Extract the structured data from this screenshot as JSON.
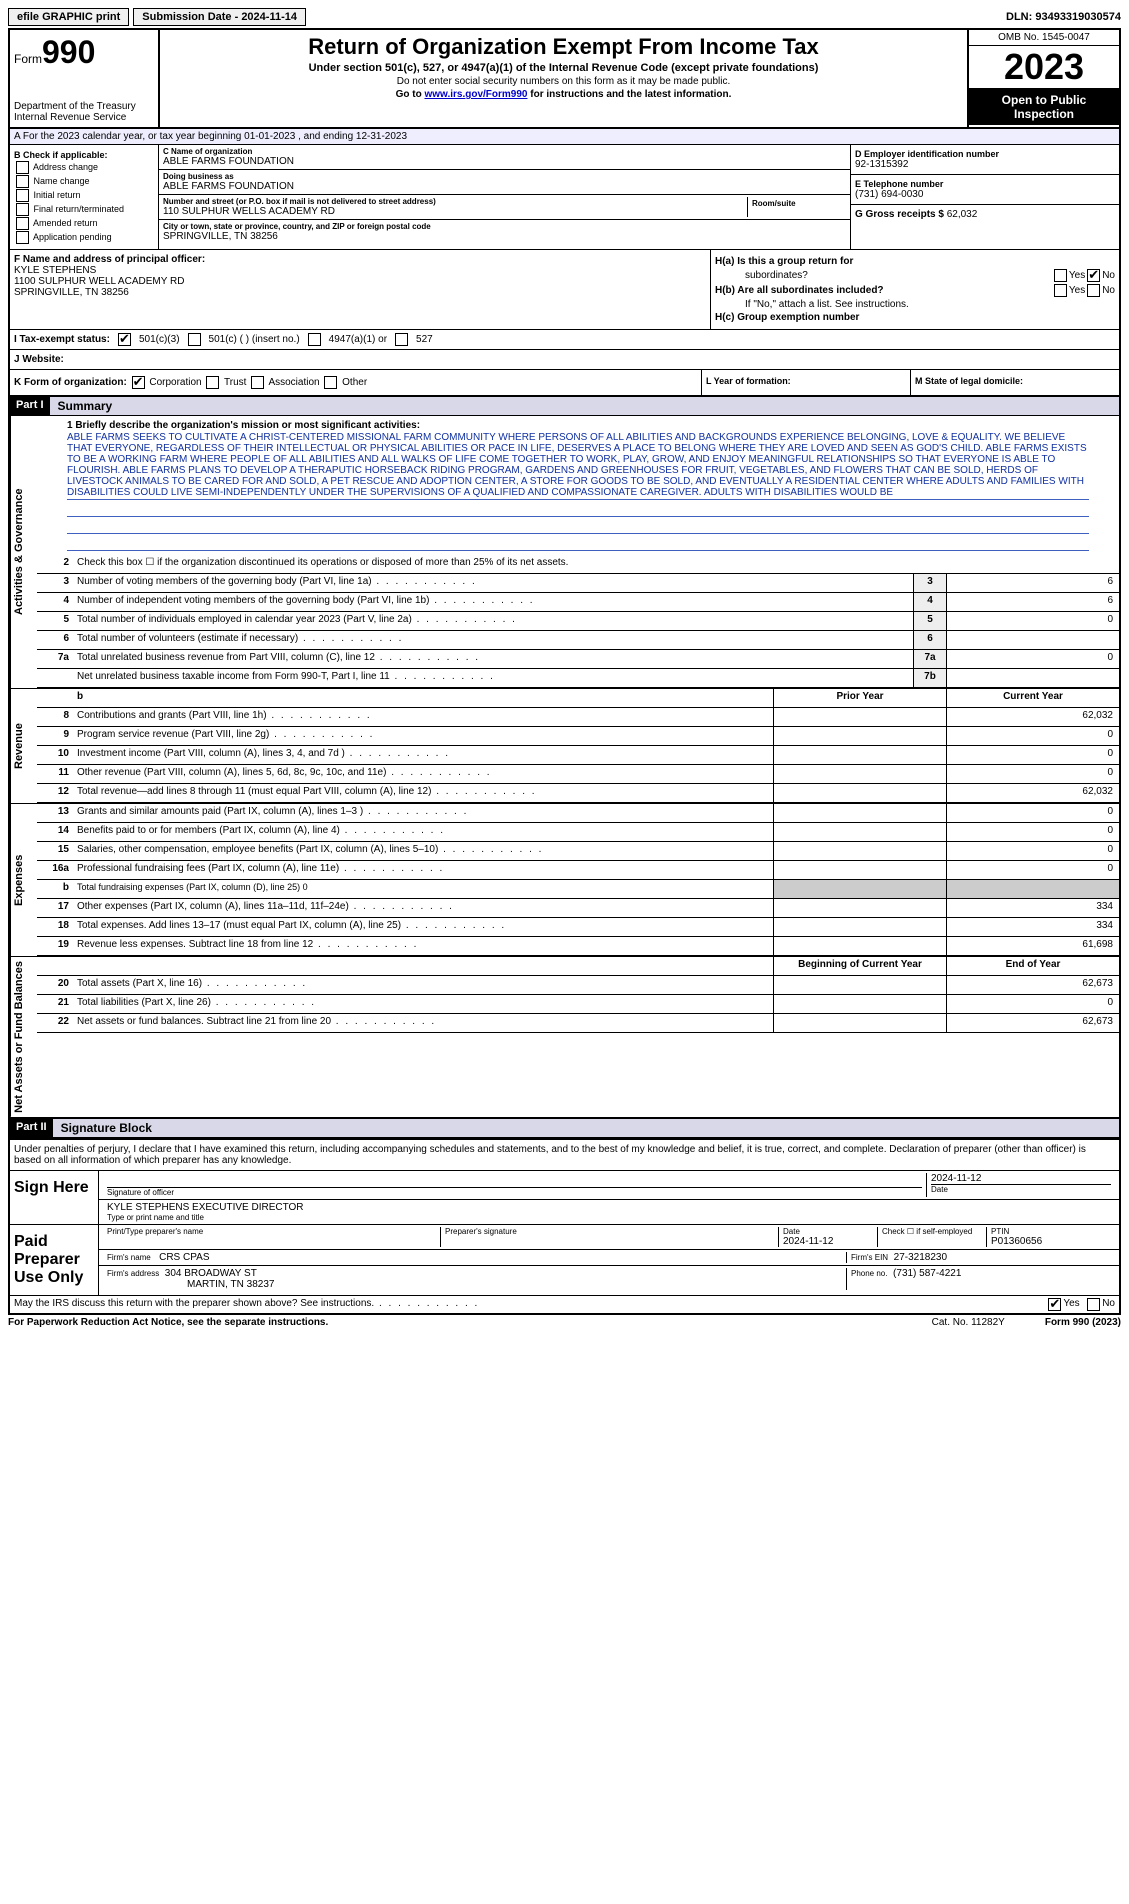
{
  "topbar": {
    "efile": "efile GRAPHIC print",
    "sub_label": "Submission Date - 2024-11-14",
    "dln": "DLN: 93493319030574"
  },
  "header": {
    "form_word": "Form",
    "form_num": "990",
    "dept": "Department of the Treasury",
    "irs": "Internal Revenue Service",
    "title": "Return of Organization Exempt From Income Tax",
    "sub1": "Under section 501(c), 527, or 4947(a)(1) of the Internal Revenue Code (except private foundations)",
    "sub2": "Do not enter social security numbers on this form as it may be made public.",
    "sub3_pre": "Go to ",
    "sub3_link": "www.irs.gov/Form990",
    "sub3_post": " for instructions and the latest information.",
    "omb": "OMB No. 1545-0047",
    "year": "2023",
    "inspect1": "Open to Public",
    "inspect2": "Inspection"
  },
  "row_a": "A For the 2023 calendar year, or tax year beginning 01-01-2023   , and ending 12-31-2023",
  "col_b": {
    "hdr": "B Check if applicable:",
    "items": [
      "Address change",
      "Name change",
      "Initial return",
      "Final return/terminated",
      "Amended return",
      "Application pending"
    ]
  },
  "col_c": {
    "name_lbl": "C Name of organization",
    "name": "ABLE FARMS FOUNDATION",
    "dba_lbl": "Doing business as",
    "dba": "ABLE FARMS FOUNDATION",
    "street_lbl": "Number and street (or P.O. box if mail is not delivered to street address)",
    "street": "110 SULPHUR WELLS ACADEMY RD",
    "room_lbl": "Room/suite",
    "city_lbl": "City or town, state or province, country, and ZIP or foreign postal code",
    "city": "SPRINGVILLE, TN  38256"
  },
  "col_d": {
    "ein_lbl": "D Employer identification number",
    "ein": "92-1315392",
    "tel_lbl": "E Telephone number",
    "tel": "(731) 694-0030",
    "gross_lbl": "G Gross receipts $",
    "gross": "62,032"
  },
  "col_f": {
    "lbl": "F  Name and address of principal officer:",
    "name": "KYLE STEPHENS",
    "addr1": "1100 SULPHUR WELL ACADEMY RD",
    "addr2": "SPRINGVILLE, TN  38256"
  },
  "col_h": {
    "ha": "H(a)  Is this a group return for",
    "ha2": "subordinates?",
    "hb": "H(b)  Are all subordinates included?",
    "hb_note": "If \"No,\" attach a list. See instructions.",
    "hc": "H(c)  Group exemption number",
    "yes": "Yes",
    "no": "No"
  },
  "row_i": {
    "lbl": "I   Tax-exempt status:",
    "o1": "501(c)(3)",
    "o2": "501(c) (  ) (insert no.)",
    "o3": "4947(a)(1) or",
    "o4": "527"
  },
  "row_j": {
    "lbl": "J   Website:"
  },
  "row_k": {
    "lbl": "K Form of organization:",
    "o1": "Corporation",
    "o2": "Trust",
    "o3": "Association",
    "o4": "Other",
    "l_lbl": "L Year of formation:",
    "m_lbl": "M State of legal domicile:"
  },
  "part1": {
    "num": "Part I",
    "title": "Summary"
  },
  "side_labels": {
    "ag": "Activities & Governance",
    "rev": "Revenue",
    "exp": "Expenses",
    "net": "Net Assets or Fund Balances"
  },
  "mission_lbl": "1   Briefly describe the organization's mission or most significant activities:",
  "mission": "ABLE FARMS SEEKS TO CULTIVATE A CHRIST-CENTERED MISSIONAL FARM COMMUNITY WHERE PERSONS OF ALL ABILITIES AND BACKGROUNDS EXPERIENCE BELONGING, LOVE & EQUALITY. WE BELIEVE THAT EVERYONE, REGARDLESS OF THEIR INTELLECTUAL OR PHYSICAL ABILITIES OR PACE IN LIFE, DESERVES A PLACE TO BELONG WHERE THEY ARE LOVED AND SEEN AS GOD'S CHILD. ABLE FARMS EXISTS TO BE A WORKING FARM WHERE PEOPLE OF ALL ABILITIES AND ALL WALKS OF LIFE COME TOGETHER TO WORK, PLAY, GROW, AND ENJOY MEANINGFUL RELATIONSHIPS SO THAT EVERYONE IS ABLE TO FLOURISH. ABLE FARMS PLANS TO DEVELOP A THERAPUTIC HORSEBACK RIDING PROGRAM, GARDENS AND GREENHOUSES FOR FRUIT, VEGETABLES, AND FLOWERS THAT CAN BE SOLD, HERDS OF LIVESTOCK ANIMALS TO BE CARED FOR AND SOLD, A PET RESCUE AND ADOPTION CENTER, A STORE FOR GOODS TO BE SOLD, AND EVENTUALLY A RESIDENTIAL CENTER WHERE ADULTS AND FAMILIES WITH DISABILITIES COULD LIVE SEMI-INDEPENDENTLY UNDER THE SUPERVISIONS OF A QUALIFIED AND COMPASSIONATE CAREGIVER. ADULTS WITH DISABILITIES WOULD BE",
  "lines_ag": [
    {
      "n": "2",
      "t": "Check this box  ☐  if the organization discontinued its operations or disposed of more than 25% of its net assets."
    },
    {
      "n": "3",
      "t": "Number of voting members of the governing body (Part VI, line 1a)",
      "box": "3",
      "v": "6"
    },
    {
      "n": "4",
      "t": "Number of independent voting members of the governing body (Part VI, line 1b)",
      "box": "4",
      "v": "6"
    },
    {
      "n": "5",
      "t": "Total number of individuals employed in calendar year 2023 (Part V, line 2a)",
      "box": "5",
      "v": "0"
    },
    {
      "n": "6",
      "t": "Total number of volunteers (estimate if necessary)",
      "box": "6",
      "v": ""
    },
    {
      "n": "7a",
      "t": "Total unrelated business revenue from Part VIII, column (C), line 12",
      "box": "7a",
      "v": "0"
    },
    {
      "n": "",
      "t": "Net unrelated business taxable income from Form 990-T, Part I, line 11",
      "box": "7b",
      "v": ""
    }
  ],
  "col_hdrs": {
    "prior": "Prior Year",
    "current": "Current Year",
    "begin": "Beginning of Current Year",
    "end": "End of Year"
  },
  "lines_rev": [
    {
      "n": "8",
      "t": "Contributions and grants (Part VIII, line 1h)",
      "p": "",
      "c": "62,032"
    },
    {
      "n": "9",
      "t": "Program service revenue (Part VIII, line 2g)",
      "p": "",
      "c": "0"
    },
    {
      "n": "10",
      "t": "Investment income (Part VIII, column (A), lines 3, 4, and 7d )",
      "p": "",
      "c": "0"
    },
    {
      "n": "11",
      "t": "Other revenue (Part VIII, column (A), lines 5, 6d, 8c, 9c, 10c, and 11e)",
      "p": "",
      "c": "0"
    },
    {
      "n": "12",
      "t": "Total revenue—add lines 8 through 11 (must equal Part VIII, column (A), line 12)",
      "p": "",
      "c": "62,032"
    }
  ],
  "lines_exp": [
    {
      "n": "13",
      "t": "Grants and similar amounts paid (Part IX, column (A), lines 1–3 )",
      "p": "",
      "c": "0"
    },
    {
      "n": "14",
      "t": "Benefits paid to or for members (Part IX, column (A), line 4)",
      "p": "",
      "c": "0"
    },
    {
      "n": "15",
      "t": "Salaries, other compensation, employee benefits (Part IX, column (A), lines 5–10)",
      "p": "",
      "c": "0"
    },
    {
      "n": "16a",
      "t": "Professional fundraising fees (Part IX, column (A), line 11e)",
      "p": "",
      "c": "0"
    },
    {
      "n": "b",
      "t": "Total fundraising expenses (Part IX, column (D), line 25) 0",
      "shaded": true
    },
    {
      "n": "17",
      "t": "Other expenses (Part IX, column (A), lines 11a–11d, 11f–24e)",
      "p": "",
      "c": "334"
    },
    {
      "n": "18",
      "t": "Total expenses. Add lines 13–17 (must equal Part IX, column (A), line 25)",
      "p": "",
      "c": "334"
    },
    {
      "n": "19",
      "t": "Revenue less expenses. Subtract line 18 from line 12",
      "p": "",
      "c": "61,698"
    }
  ],
  "lines_net": [
    {
      "n": "20",
      "t": "Total assets (Part X, line 16)",
      "p": "",
      "c": "62,673"
    },
    {
      "n": "21",
      "t": "Total liabilities (Part X, line 26)",
      "p": "",
      "c": "0"
    },
    {
      "n": "22",
      "t": "Net assets or fund balances. Subtract line 21 from line 20",
      "p": "",
      "c": "62,673"
    }
  ],
  "part2": {
    "num": "Part II",
    "title": "Signature Block"
  },
  "sig_decl": "Under penalties of perjury, I declare that I have examined this return, including accompanying schedules and statements, and to the best of my knowledge and belief, it is true, correct, and complete. Declaration of preparer (other than officer) is based on all information of which preparer has any knowledge.",
  "sign_here": {
    "lbl": "Sign Here",
    "sig_lbl": "Signature of officer",
    "date_lbl": "Date",
    "date": "2024-11-12",
    "name": "KYLE STEPHENS EXECUTIVE DIRECTOR",
    "name_lbl": "Type or print name and title"
  },
  "paid_prep": {
    "lbl": "Paid Preparer Use Only",
    "h1": "Print/Type preparer's name",
    "h2": "Preparer's signature",
    "h3": "Date",
    "h3v": "2024-11-12",
    "h4": "Check ☐ if self-employed",
    "h5": "PTIN",
    "h5v": "P01360656",
    "firm_lbl": "Firm's name",
    "firm": "CRS CPAS",
    "ein_lbl": "Firm's EIN",
    "ein": "27-3218230",
    "addr_lbl": "Firm's address",
    "addr1": "304 BROADWAY ST",
    "addr2": "MARTIN, TN  38237",
    "phone_lbl": "Phone no.",
    "phone": "(731) 587-4221"
  },
  "discuss": "May the IRS discuss this return with the preparer shown above? See instructions.",
  "footer": {
    "l": "For Paperwork Reduction Act Notice, see the separate instructions.",
    "m": "Cat. No. 11282Y",
    "r": "Form 990 (2023)"
  }
}
